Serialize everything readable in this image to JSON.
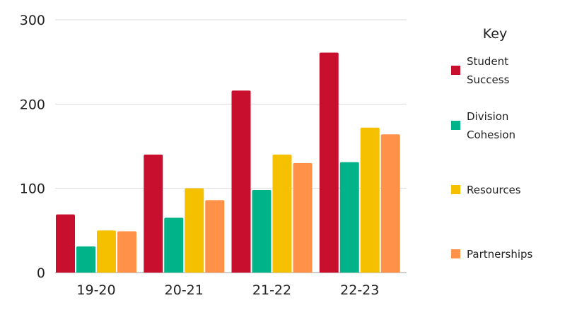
{
  "chart_data": {
    "type": "bar",
    "title": "",
    "xlabel": "",
    "ylabel": "",
    "categories": [
      "19-20",
      "20-21",
      "21-22",
      "22-23"
    ],
    "series": [
      {
        "name": "Student Success",
        "values": [
          69,
          140,
          216,
          261
        ],
        "color": "#c8102e"
      },
      {
        "name": "Division Cohesion",
        "values": [
          31,
          65,
          98,
          131
        ],
        "color": "#00b388"
      },
      {
        "name": "Resources",
        "values": [
          50,
          100,
          140,
          172
        ],
        "color": "#f5c000"
      },
      {
        "name": "Partnerships",
        "values": [
          49,
          86,
          130,
          164
        ],
        "color": "#ff9248"
      }
    ],
    "ylim": [
      0,
      300
    ],
    "yticks": [
      0,
      100,
      200,
      300
    ],
    "grid": true,
    "legend": {
      "title": "Key",
      "placement": "right"
    }
  }
}
